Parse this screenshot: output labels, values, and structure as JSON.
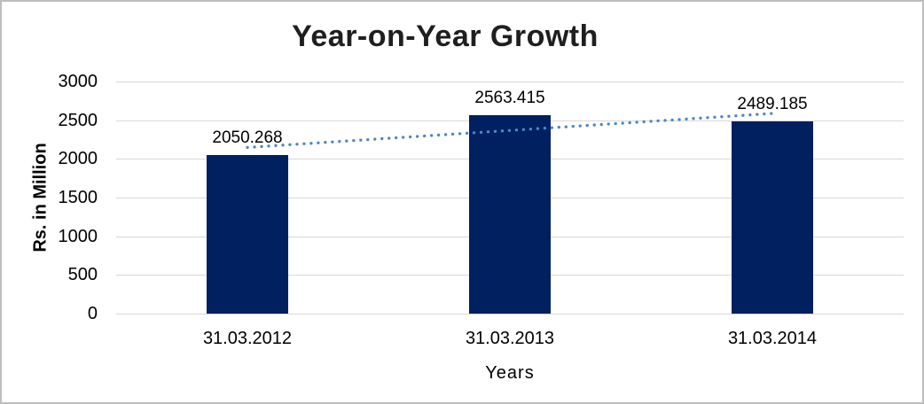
{
  "chart_data": {
    "type": "bar",
    "title": "Year-on-Year Growth",
    "categories": [
      "31.03.2012",
      "31.03.2013",
      "31.03.2014"
    ],
    "values": [
      2050.268,
      2563.415,
      2489.185
    ],
    "data_labels": [
      "2050.268",
      "2563.415",
      "2489.185"
    ],
    "xlabel": "Years",
    "ylabel": "Rs. in Million",
    "ylim": [
      0,
      3000
    ],
    "yticks": [
      3000,
      2500,
      2000,
      1500,
      1000,
      500,
      0
    ],
    "grid": "horizontal-on",
    "legend": "none",
    "trendline": {
      "kind": "linear",
      "style": "dotted",
      "fit_values_at_first_and_last_category": [
        2148.16,
        2587.08
      ]
    },
    "colors": {
      "bar": "#012060",
      "trendline": "#4f86c6",
      "gridline": "#d8d8d8",
      "canvas_border": "#bdbdbd",
      "title_text": "#1f1f1f",
      "background": "#ffffff"
    }
  }
}
